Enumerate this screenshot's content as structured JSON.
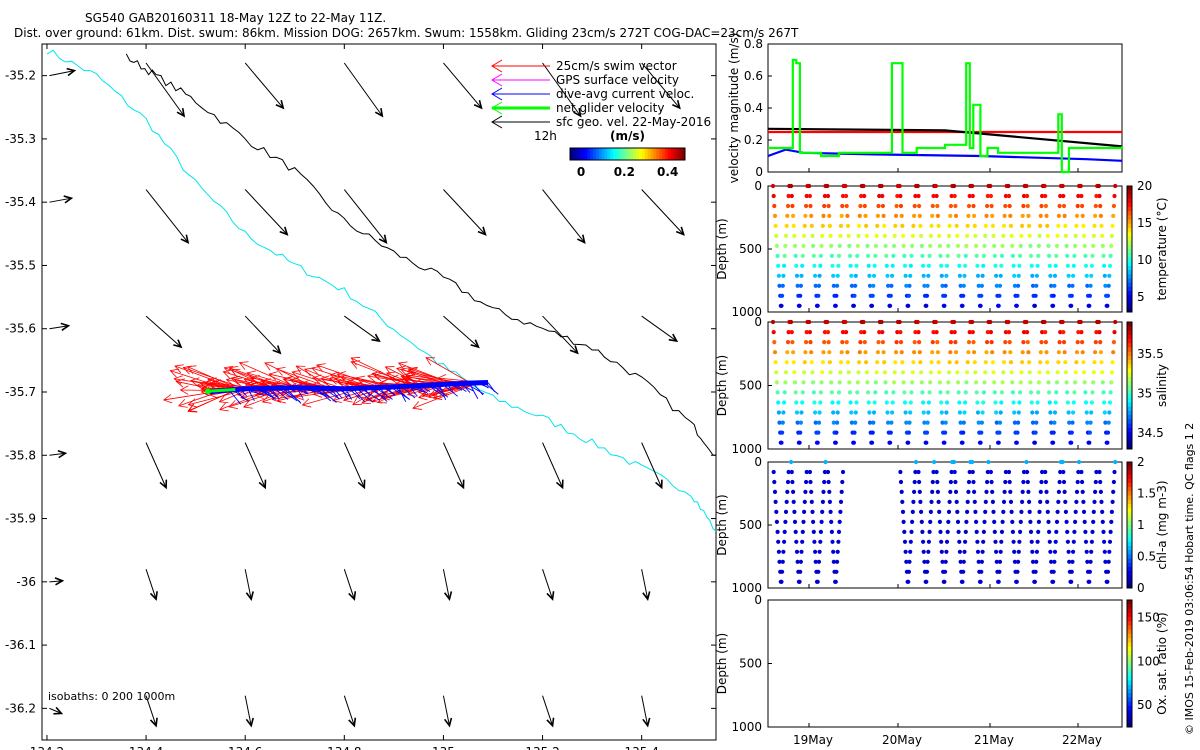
{
  "header": {
    "title_line1": "SG540 GAB20160311 18-May 12Z to 22-May 11Z.",
    "title_line2": "Dist. over ground: 61km. Dist. swum: 86km. Mission DOG: 2657km. Swum: 1558km. Gliding 23cm/s 272T COG-DAC=23cm/s 267T"
  },
  "map": {
    "x_ticks": [
      "134.2",
      "134.4",
      "134.6",
      "134.8",
      "135",
      "135.2",
      "135.4"
    ],
    "y_ticks": [
      "-35.2",
      "-35.3",
      "-35.4",
      "-35.5",
      "-35.6",
      "-35.7",
      "-35.8",
      "-35.9",
      "-36",
      "-36.1",
      "-36.2"
    ],
    "legend": [
      {
        "label": "25cm/s swim vector",
        "color": "#ff0000"
      },
      {
        "label": "GPS surface velocity",
        "color": "#ff00ff"
      },
      {
        "label": "dive-avg current veloc.",
        "color": "#0000ff"
      },
      {
        "label": "net glider velocity",
        "color": "#00ff00"
      },
      {
        "label": "sfc geo. vel. 22-May-2016",
        "color": "#000000"
      }
    ],
    "legend_extra": "12h",
    "colorbar": {
      "label": "(m/s)",
      "ticks": [
        "0",
        "0.2",
        "0.4"
      ]
    },
    "isobaths_text": "isobaths: 0   200  1000m"
  },
  "side_text": "© IMOS 15-Feb-2019 03:06:54 Hobart time. QC flags 1  2",
  "chart_data": [
    {
      "type": "scatter",
      "title": "Glider track with velocity vectors",
      "xlim": [
        134.19,
        135.55
      ],
      "ylim": [
        -36.25,
        -35.15
      ],
      "track": {
        "x": [
          134.52,
          134.6,
          134.7,
          134.8,
          134.9,
          135.0,
          135.05,
          135.09
        ],
        "y": [
          -35.7,
          -35.695,
          -35.693,
          -35.695,
          -35.692,
          -35.688,
          -35.686,
          -35.685
        ]
      },
      "isobath_200": {
        "x": [
          134.2,
          134.3,
          134.4,
          134.5,
          134.6,
          134.7,
          134.8,
          134.9,
          135.0,
          135.1,
          135.2,
          135.3,
          135.4,
          135.5,
          135.55
        ],
        "y": [
          -35.16,
          -35.2,
          -35.27,
          -35.37,
          -35.45,
          -35.5,
          -35.54,
          -35.6,
          -35.66,
          -35.71,
          -35.74,
          -35.78,
          -35.82,
          -35.86,
          -35.92
        ]
      },
      "isobath_1000": {
        "x": [
          134.36,
          134.42,
          134.5,
          134.6,
          134.7,
          134.8,
          134.9,
          135.0,
          135.1,
          135.2,
          135.3,
          135.4,
          135.5,
          135.55
        ],
        "y": [
          -35.17,
          -35.2,
          -35.24,
          -35.3,
          -35.35,
          -35.43,
          -35.48,
          -35.52,
          -35.57,
          -35.6,
          -35.63,
          -35.68,
          -35.75,
          -35.8
        ]
      }
    },
    {
      "type": "line",
      "ylabel": "velocity magnitude (m/s)",
      "ylim": [
        0,
        0.8
      ],
      "yticks": [
        "0",
        "0.2",
        "0.4",
        "0.6",
        "0.8"
      ],
      "series": [
        {
          "color": "#ff0000",
          "x": [
            0,
            1
          ],
          "y": [
            0.25,
            0.25
          ]
        },
        {
          "color": "#000000",
          "x": [
            0,
            0.5,
            1
          ],
          "y": [
            0.27,
            0.26,
            0.16
          ]
        },
        {
          "color": "#0000ff",
          "x": [
            0,
            0.05,
            0.1,
            0.3,
            0.6,
            0.9,
            1
          ],
          "y": [
            0.1,
            0.14,
            0.12,
            0.11,
            0.1,
            0.08,
            0.07
          ]
        },
        {
          "color": "#00ff00",
          "x": [
            0,
            0.065,
            0.07,
            0.08,
            0.09,
            0.1,
            0.12,
            0.15,
            0.2,
            0.25,
            0.3,
            0.34,
            0.35,
            0.36,
            0.38,
            0.42,
            0.5,
            0.55,
            0.56,
            0.57,
            0.58,
            0.6,
            0.62,
            0.65,
            0.7,
            0.8,
            0.82,
            0.83,
            0.84,
            0.85,
            0.88,
            1
          ],
          "y": [
            0.15,
            0.15,
            0.7,
            0.68,
            0.12,
            0.12,
            0.12,
            0.1,
            0.12,
            0.12,
            0.12,
            0.12,
            0.68,
            0.68,
            0.12,
            0.15,
            0.17,
            0.17,
            0.68,
            0.15,
            0.42,
            0.1,
            0.15,
            0.12,
            0.12,
            0.12,
            0.36,
            0.0,
            0.0,
            0.15,
            0.15,
            0.16
          ]
        }
      ]
    },
    {
      "type": "scatter",
      "ylabel": "Depth (m)",
      "clabel": "temperature (°C)",
      "yticks": [
        "0",
        "500",
        "1000"
      ],
      "cticks": [
        "5",
        "10",
        "15",
        "20"
      ],
      "clim": [
        3,
        20
      ]
    },
    {
      "type": "scatter",
      "ylabel": "Depth (m)",
      "clabel": "salinity",
      "yticks": [
        "0",
        "500",
        "1000"
      ],
      "cticks": [
        "34.5",
        "35",
        "35.5"
      ],
      "clim": [
        34.3,
        35.9
      ]
    },
    {
      "type": "scatter",
      "ylabel": "Depth (m)",
      "clabel": "chl-a (mg m-3)",
      "yticks": [
        "0",
        "500",
        "1000"
      ],
      "cticks": [
        "0",
        "0.5",
        "1",
        "1.5",
        "2"
      ],
      "clim": [
        0,
        2
      ]
    },
    {
      "type": "scatter",
      "ylabel": "Depth (m)",
      "clabel": "Ox. sat. ratio (%)",
      "yticks": [
        "0",
        "500",
        "1000"
      ],
      "cticks": [
        "50",
        "100",
        "150"
      ],
      "clim": [
        25,
        170
      ]
    }
  ],
  "time_axis": {
    "ticks": [
      "19May",
      "20May",
      "21May",
      "22May"
    ]
  },
  "colors": {
    "track_red": "#ff0000",
    "dac_blue": "#0000ff",
    "net_green": "#00ff00",
    "isobath_cyan": "#00e5ee"
  }
}
